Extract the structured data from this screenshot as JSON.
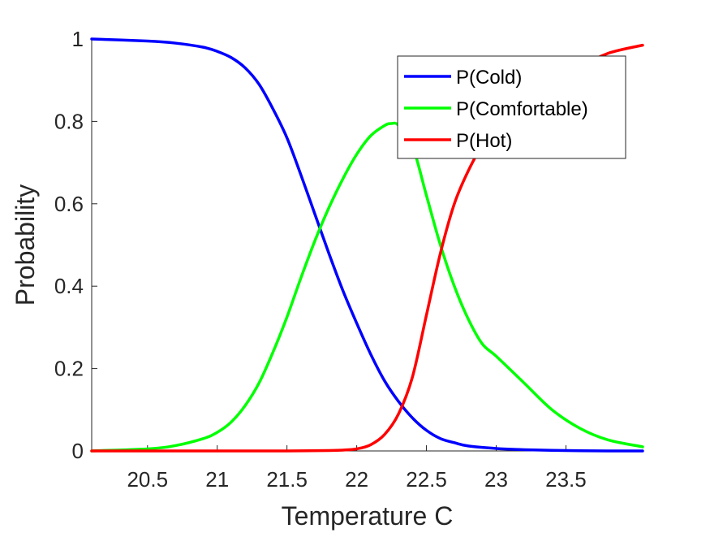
{
  "chart_data": {
    "type": "line",
    "title": "",
    "xlabel": "Temperature C",
    "ylabel": "Probability",
    "xlim": [
      20.1,
      24.05
    ],
    "ylim": [
      0,
      1
    ],
    "xticks": [
      20.5,
      21,
      21.5,
      22,
      22.5,
      23,
      23.5
    ],
    "xtick_labels": [
      "20.5",
      "21",
      "21.5",
      "22",
      "22.5",
      "23",
      "23.5"
    ],
    "yticks": [
      0,
      0.2,
      0.4,
      0.6,
      0.8,
      1
    ],
    "ytick_labels": [
      "0",
      "0.2",
      "0.4",
      "0.6",
      "0.8",
      "1"
    ],
    "grid": false,
    "legend_position": "top-right",
    "series": [
      {
        "name": "P(Cold)",
        "color": "#0000ff",
        "x": [
          20.1,
          20.5,
          20.7,
          20.9,
          21.0,
          21.1,
          21.2,
          21.3,
          21.4,
          21.5,
          21.6,
          21.7,
          21.8,
          21.9,
          22.0,
          22.1,
          22.2,
          22.3,
          22.4,
          22.5,
          22.6,
          22.7,
          22.8,
          23.0,
          23.2,
          23.5,
          23.8,
          24.05
        ],
        "y": [
          1.0,
          0.995,
          0.99,
          0.98,
          0.97,
          0.955,
          0.93,
          0.89,
          0.83,
          0.76,
          0.67,
          0.575,
          0.48,
          0.39,
          0.31,
          0.235,
          0.17,
          0.12,
          0.08,
          0.05,
          0.03,
          0.02,
          0.012,
          0.006,
          0.003,
          0.001,
          0.0,
          0.0
        ]
      },
      {
        "name": "P(Comfortable)",
        "color": "#00ff00",
        "x": [
          20.1,
          20.5,
          20.7,
          20.9,
          21.0,
          21.1,
          21.2,
          21.3,
          21.4,
          21.5,
          21.6,
          21.7,
          21.8,
          21.9,
          22.0,
          22.1,
          22.2,
          22.25,
          22.3,
          22.4,
          22.5,
          22.6,
          22.7,
          22.8,
          22.9,
          23.0,
          23.2,
          23.4,
          23.6,
          23.8,
          24.05
        ],
        "y": [
          0.0,
          0.005,
          0.013,
          0.03,
          0.045,
          0.07,
          0.11,
          0.165,
          0.24,
          0.325,
          0.42,
          0.51,
          0.59,
          0.66,
          0.72,
          0.765,
          0.79,
          0.795,
          0.79,
          0.74,
          0.62,
          0.5,
          0.4,
          0.32,
          0.26,
          0.23,
          0.165,
          0.1,
          0.055,
          0.027,
          0.01
        ]
      },
      {
        "name": "P(Hot)",
        "color": "#ff0000",
        "x": [
          20.1,
          21.0,
          21.5,
          21.8,
          21.9,
          22.0,
          22.1,
          22.2,
          22.3,
          22.4,
          22.5,
          22.6,
          22.7,
          22.8,
          22.9,
          23.0,
          23.2,
          23.4,
          23.6,
          23.8,
          24.05
        ],
        "y": [
          0.0,
          0.0,
          0.0,
          0.001,
          0.002,
          0.005,
          0.015,
          0.04,
          0.09,
          0.18,
          0.33,
          0.48,
          0.6,
          0.68,
          0.74,
          0.77,
          0.83,
          0.88,
          0.93,
          0.965,
          0.985
        ]
      }
    ]
  }
}
